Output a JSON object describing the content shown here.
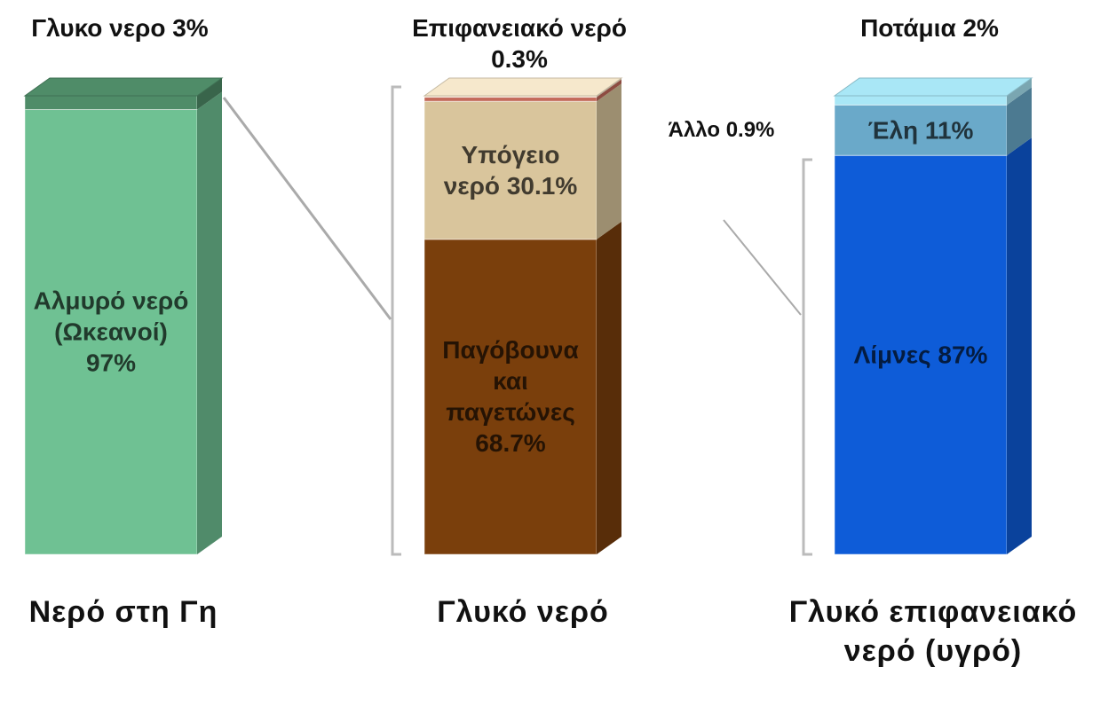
{
  "chart_data": [
    {
      "type": "stacked_bar",
      "title": "Νερό στη Γη",
      "categories": [
        "Αλμυρό νερό (Ωκεανοί)",
        "Γλυκο νερο"
      ],
      "values": [
        97,
        3
      ],
      "value_labels": [
        "97%",
        "3%"
      ],
      "colors": [
        "#6fc193",
        "#4f8c68"
      ]
    },
    {
      "type": "stacked_bar",
      "title": "Γλυκό νερό",
      "categories": [
        "Παγόβουνα και παγετώνες",
        "Υπόγειο νερό",
        "Άλλο",
        "Επιφανειακό νερό"
      ],
      "values": [
        68.7,
        30.1,
        0.9,
        0.3
      ],
      "value_labels": [
        "68.7%",
        "30.1%",
        "0.9%",
        "0.3%"
      ],
      "colors": [
        "#7a3f0c",
        "#d9c59c",
        "#c46a5a",
        "#f6e8cc"
      ]
    },
    {
      "type": "stacked_bar",
      "title": "Γλυκό επιφανειακό νερό (υγρό)",
      "categories": [
        "Λίμνες",
        "Έλη",
        "Ποτάμια"
      ],
      "values": [
        87,
        11,
        2
      ],
      "value_labels": [
        "87%",
        "11%",
        "2%"
      ],
      "colors": [
        "#0e5cd8",
        "#6aa9c9",
        "#a9e7f6"
      ]
    }
  ]
}
